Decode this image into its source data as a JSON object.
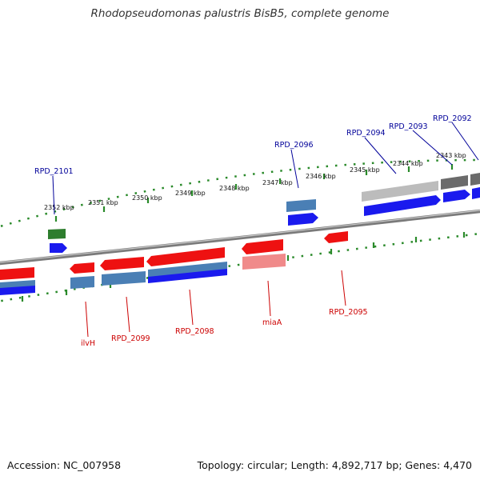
{
  "title": "Rhodopseudomonas palustris BisB5, complete genome",
  "footer": {
    "accession": "Accession: NC_007958",
    "summary": "Topology: circular; Length: 4,892,717 bp; Genes: 4,470"
  },
  "colors": {
    "forward_label": "#cc0000",
    "reverse_label": "#000099",
    "tick": "#2a8a2a",
    "backbone": "#7a7a7a"
  },
  "ticks": [
    "2352 kbp",
    "2351 kbp",
    "2350 kbp",
    "2349 kbp",
    "2348 kbp",
    "2347 kbp",
    "2346 kbp",
    "2345 kbp",
    "2344 kbp",
    "2343 kbp"
  ],
  "gene_labels": {
    "upper": [
      "RPD_2101",
      "RPD_2096",
      "RPD_2094",
      "RPD_2093",
      "RPD_2092"
    ],
    "lower": [
      "ilvH",
      "RPD_2099",
      "RPD_2098",
      "miaA",
      "RPD_2095"
    ]
  }
}
